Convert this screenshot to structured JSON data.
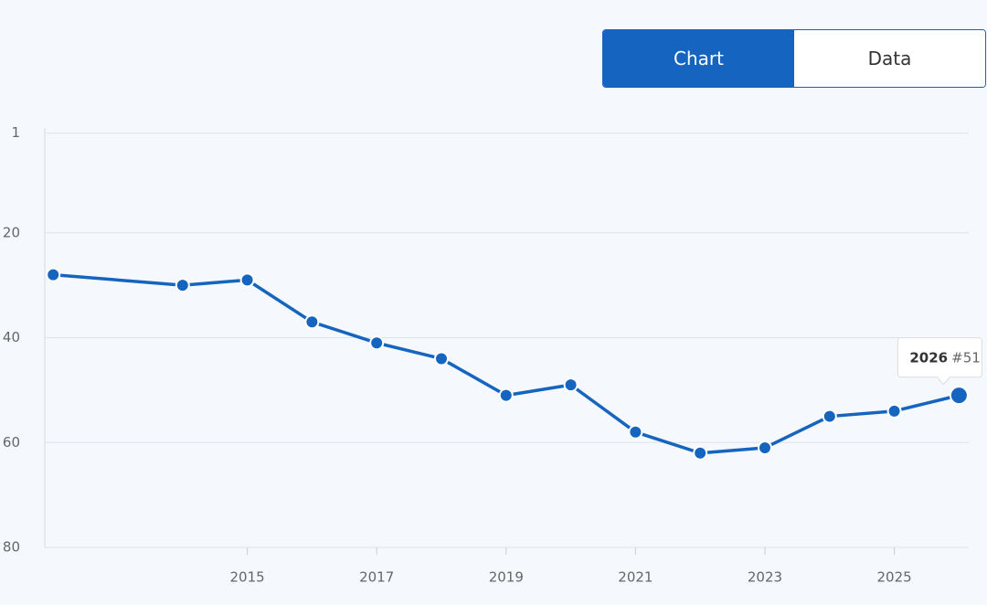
{
  "tabs": [
    "Chart",
    "Data"
  ],
  "chart_data": {
    "type": "line",
    "x": [
      2012,
      2014,
      2015,
      2016,
      2017,
      2018,
      2019,
      2020,
      2021,
      2022,
      2023,
      2024,
      2025,
      2026
    ],
    "values": [
      28,
      30,
      29,
      37,
      41,
      44,
      51,
      49,
      58,
      62,
      61,
      55,
      54,
      51
    ],
    "color": "#1565c0",
    "xlim": [
      2011.87,
      2026.15
    ],
    "xticks": [
      2015,
      2017,
      2019,
      2021,
      2023,
      2025
    ],
    "ylim": [
      0,
      80
    ],
    "yticks": [
      1,
      20,
      40,
      60,
      80
    ],
    "y_inverted": true,
    "grid": true,
    "tooltip_label": "#51"
  }
}
